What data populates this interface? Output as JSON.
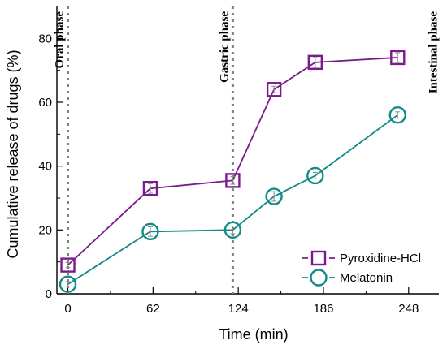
{
  "chart_data": {
    "type": "line",
    "xlabel": "Time (min)",
    "ylabel": "Cumulative release of drugs (%)",
    "xlim": [
      -8,
      270
    ],
    "ylim": [
      0,
      90
    ],
    "x_ticks": [
      0,
      62,
      124,
      186,
      248
    ],
    "y_ticks": [
      0,
      20,
      40,
      60,
      80
    ],
    "grid": false,
    "legend_position": "bottom-right",
    "phase_lines": [
      {
        "x": 0,
        "label": "Oral phase"
      },
      {
        "x": 120,
        "label": "Gastric phase"
      }
    ],
    "annotations": [
      {
        "x": 240,
        "label": "Intestinal phase"
      }
    ],
    "series": [
      {
        "name": "Pyroxidine-HCl",
        "color": "#7b1a8c",
        "marker": "square",
        "x": [
          0,
          60,
          120,
          150,
          180,
          240
        ],
        "y": [
          9,
          33,
          35.5,
          64,
          72.5,
          74
        ],
        "error": [
          0.8,
          1.5,
          1.2,
          1.0,
          1.5,
          1.5
        ]
      },
      {
        "name": "Melatonin",
        "color": "#138a86",
        "marker": "circle",
        "x": [
          0,
          60,
          120,
          150,
          180,
          240
        ],
        "y": [
          3,
          19.5,
          20,
          30.5,
          37,
          56
        ],
        "error": [
          0.8,
          1.5,
          1.2,
          1.5,
          1.0,
          1.0
        ]
      }
    ]
  }
}
